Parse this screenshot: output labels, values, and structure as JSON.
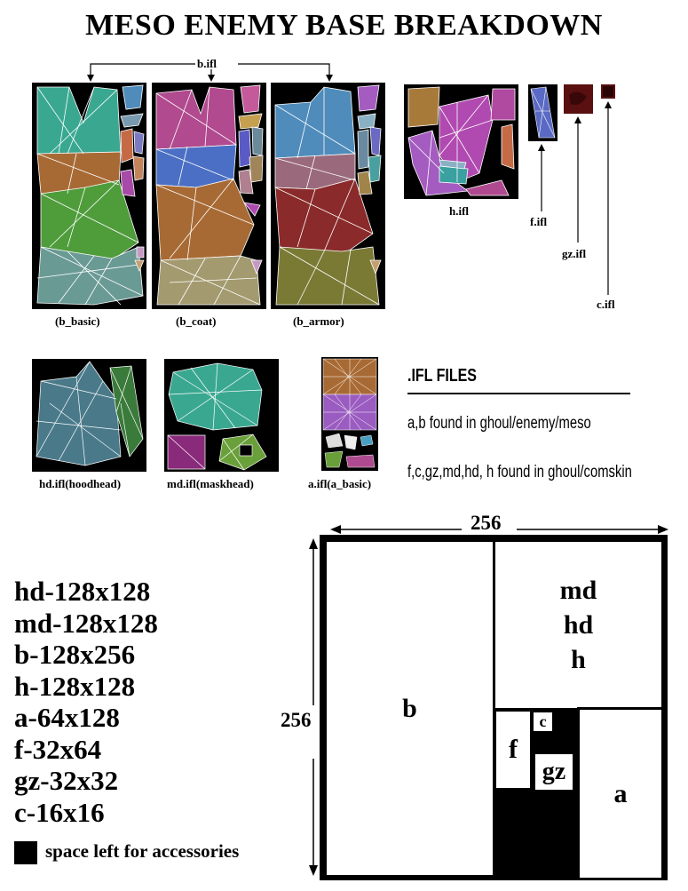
{
  "title": "MESO ENEMY BASE BREAKDOWN",
  "top_labels": {
    "b_ifl": "b.ifl",
    "h_ifl": "h.ifl",
    "f_ifl": "f.ifl",
    "gz_ifl": "gz.ifl",
    "c_ifl": "c.ifl"
  },
  "captions": {
    "b_basic": "(b_basic)",
    "b_coat": "(b_coat)",
    "b_armor": "(b_armor)",
    "hd": "hd.ifl(hoodhead)",
    "md": "md.ifl(maskhead)",
    "a": "a.ifl(a_basic)"
  },
  "ifl_files": {
    "heading": ".IFL FILES",
    "line1": "a,b found in ghoul/enemy/meso",
    "line2": "f,c,gz,md,hd, h found in ghoul/comskin"
  },
  "sizes": [
    "hd-128x128",
    "md-128x128",
    "b-128x256",
    "h-128x128",
    "a-64x128",
    "f-32x64",
    "gz-32x32",
    "c-16x16"
  ],
  "legend": {
    "text": "space left for accessories",
    "color": "#000000"
  },
  "layout_diagram": {
    "width_label": "256",
    "height_label": "256",
    "cells": {
      "b": "b",
      "md": "md",
      "hd": "hd",
      "h": "h",
      "f": "f",
      "c": "c",
      "gz": "gz",
      "a": "a"
    }
  },
  "colors": {
    "teal": "#3aa891",
    "orange": "#a86a34",
    "green": "#4f9c3b",
    "pink": "#b14a8e",
    "blue": "#4b6fc4",
    "tan": "#a49a70",
    "steelblue": "#4f8cbb",
    "mauve": "#9a6a7c",
    "darkred": "#8a2a2a",
    "olive": "#7a7a35",
    "purple": "#a45cc0",
    "maroon": "#5a1010"
  }
}
